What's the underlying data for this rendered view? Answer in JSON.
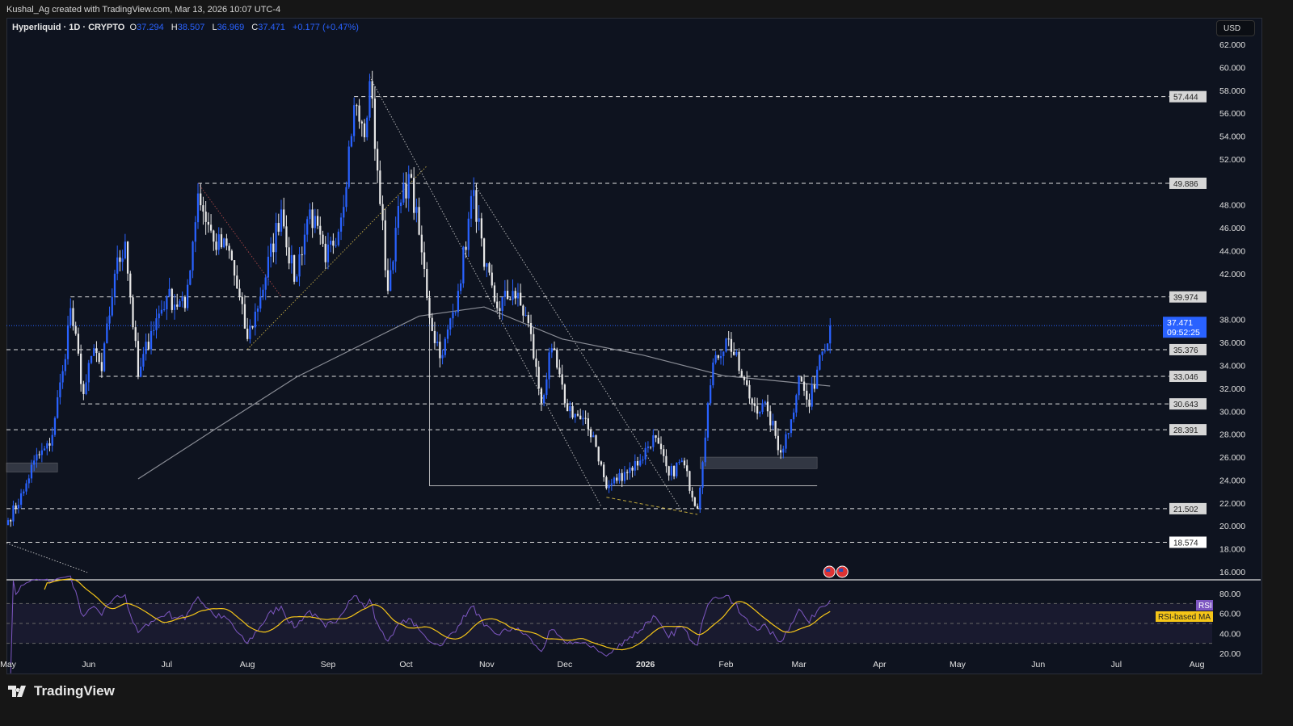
{
  "credit": "Kushal_Ag created with TradingView.com, Mar 13, 2026 10:07 UTC-4",
  "legend": {
    "symbol": "Hyperliquid · 1D · CRYPTO",
    "o_label": "O",
    "o": "37.294",
    "h_label": "H",
    "h": "38.507",
    "l_label": "L",
    "l": "36.969",
    "c_label": "C",
    "c": "37.471",
    "change": "+0.177 (+0.47%)"
  },
  "currency_button": "USD",
  "logo": "TradingView",
  "colors": {
    "up": "#2962ff",
    "down": "#e6e6e6",
    "ma": "#8a8d96",
    "rsi": "#7e57c2",
    "rsi_ma": "#f5c518",
    "last_price": "#2962ff"
  },
  "chart_data": {
    "type": "candlestick",
    "timeframe": "1D",
    "start_date": "2025-05-01",
    "ylim": [
      16,
      62
    ],
    "y_ticks": [
      "62.000",
      "60.000",
      "58.000",
      "56.000",
      "54.000",
      "52.000",
      "48.000",
      "46.000",
      "44.000",
      "42.000",
      "38.000",
      "36.000",
      "34.000",
      "32.000",
      "30.000",
      "28.000",
      "26.000",
      "24.000",
      "22.000",
      "20.000",
      "18.000",
      "16.000"
    ],
    "x_ticks": [
      {
        "label": "May",
        "date": "2025-05-01"
      },
      {
        "label": "Jun",
        "date": "2025-06-01"
      },
      {
        "label": "Jul",
        "date": "2025-07-01"
      },
      {
        "label": "Aug",
        "date": "2025-08-01"
      },
      {
        "label": "Sep",
        "date": "2025-09-01"
      },
      {
        "label": "Oct",
        "date": "2025-10-01"
      },
      {
        "label": "Nov",
        "date": "2025-11-01"
      },
      {
        "label": "Dec",
        "date": "2025-12-01"
      },
      {
        "label": "2026",
        "date": "2026-01-01"
      },
      {
        "label": "Feb",
        "date": "2026-02-01"
      },
      {
        "label": "Mar",
        "date": "2026-03-01"
      },
      {
        "label": "Apr",
        "date": "2026-04-01"
      },
      {
        "label": "May",
        "date": "2026-05-01"
      },
      {
        "label": "Jun",
        "date": "2026-06-01"
      },
      {
        "label": "Jul",
        "date": "2026-07-01"
      },
      {
        "label": "Aug",
        "date": "2026-08-01"
      }
    ],
    "x_end": "2026-08-05",
    "close_path": [
      [
        "2025-05-01",
        20.5
      ],
      [
        "2025-05-07",
        23
      ],
      [
        "2025-05-11",
        25.7
      ],
      [
        "2025-05-17",
        27
      ],
      [
        "2025-05-22",
        33.5
      ],
      [
        "2025-05-25",
        39
      ],
      [
        "2025-05-30",
        31.5
      ],
      [
        "2025-06-03",
        35.5
      ],
      [
        "2025-06-06",
        33.5
      ],
      [
        "2025-06-11",
        42
      ],
      [
        "2025-06-15",
        44.8
      ],
      [
        "2025-06-20",
        33
      ],
      [
        "2025-06-25",
        37
      ],
      [
        "2025-07-01",
        40
      ],
      [
        "2025-07-08",
        39
      ],
      [
        "2025-07-13",
        49
      ],
      [
        "2025-07-19",
        44.8
      ],
      [
        "2025-07-25",
        44
      ],
      [
        "2025-08-01",
        36.3
      ],
      [
        "2025-08-06",
        40
      ],
      [
        "2025-08-14",
        47.6
      ],
      [
        "2025-08-19",
        41.3
      ],
      [
        "2025-08-25",
        47.6
      ],
      [
        "2025-08-31",
        43
      ],
      [
        "2025-09-06",
        46.9
      ],
      [
        "2025-09-11",
        56.7
      ],
      [
        "2025-09-15",
        53.9
      ],
      [
        "2025-09-17",
        58.8
      ],
      [
        "2025-09-20",
        51
      ],
      [
        "2025-09-24",
        40.5
      ],
      [
        "2025-09-27",
        46
      ],
      [
        "2025-10-02",
        50.7
      ],
      [
        "2025-10-06",
        45.4
      ],
      [
        "2025-10-11",
        37
      ],
      [
        "2025-10-15",
        34.9
      ],
      [
        "2025-10-21",
        40.5
      ],
      [
        "2025-10-27",
        49.3
      ],
      [
        "2025-10-31",
        42.6
      ],
      [
        "2025-11-05",
        39
      ],
      [
        "2025-11-11",
        40.5
      ],
      [
        "2025-11-17",
        37.7
      ],
      [
        "2025-11-22",
        30.7
      ],
      [
        "2025-11-26",
        35.5
      ],
      [
        "2025-12-01",
        30.7
      ],
      [
        "2025-12-07",
        29.3
      ],
      [
        "2025-12-12",
        27.9
      ],
      [
        "2025-12-17",
        23.3
      ],
      [
        "2025-12-24",
        24.7
      ],
      [
        "2025-12-30",
        25.7
      ],
      [
        "2026-01-04",
        27.9
      ],
      [
        "2026-01-10",
        24.4
      ],
      [
        "2026-01-15",
        25.7
      ],
      [
        "2026-01-21",
        21.5
      ],
      [
        "2026-01-25",
        30.7
      ],
      [
        "2026-01-28",
        34.9
      ],
      [
        "2026-02-02",
        36.3
      ],
      [
        "2026-02-07",
        33
      ],
      [
        "2026-02-11",
        30.7
      ],
      [
        "2026-02-17",
        30
      ],
      [
        "2026-02-22",
        26.4
      ],
      [
        "2026-02-26",
        29.3
      ],
      [
        "2026-03-01",
        33
      ],
      [
        "2026-03-05",
        30.4
      ],
      [
        "2026-03-09",
        34.9
      ],
      [
        "2026-03-13",
        37.471
      ]
    ],
    "moving_average": [
      [
        "2025-06-20",
        24.1
      ],
      [
        "2025-07-20",
        28.5
      ],
      [
        "2025-08-20",
        33
      ],
      [
        "2025-09-20",
        36.5
      ],
      [
        "2025-10-06",
        38.3
      ],
      [
        "2025-10-31",
        39.1
      ],
      [
        "2025-11-30",
        36.3
      ],
      [
        "2025-12-31",
        34.9
      ],
      [
        "2026-01-31",
        33.1
      ],
      [
        "2026-03-13",
        32.2
      ]
    ],
    "last_price": {
      "value": "37.471",
      "countdown": "09:52:25"
    },
    "levels": [
      {
        "value": 57.444,
        "label": "57.444",
        "from": "2025-09-11"
      },
      {
        "value": 49.886,
        "label": "49.886",
        "from": "2025-07-13"
      },
      {
        "value": 39.974,
        "label": "39.974",
        "from": "2025-05-25"
      },
      {
        "value": 35.376,
        "label": "35.376",
        "from": "2025-04-30"
      },
      {
        "value": 33.046,
        "label": "33.046",
        "from": "2025-06-05"
      },
      {
        "value": 30.643,
        "label": "30.643",
        "from": "2025-05-29"
      },
      {
        "value": 28.391,
        "label": "28.391",
        "from": "2025-04-30"
      },
      {
        "value": 21.502,
        "label": "21.502",
        "from": "2025-04-30"
      },
      {
        "value": 18.574,
        "label": "18.574",
        "from": "2025-04-30"
      }
    ],
    "zones": [
      {
        "from": "2025-04-30",
        "to": "2025-05-20",
        "top": 25.5,
        "bottom": 24.7
      },
      {
        "from": "2026-01-22",
        "to": "2026-03-08",
        "top": 26.0,
        "bottom": 25.0
      }
    ],
    "drawings": [
      {
        "style": "dotted",
        "color": "#cfcfcf",
        "points": [
          [
            "2025-09-17",
            59.2
          ],
          [
            "2025-12-15",
            21.7
          ]
        ]
      },
      {
        "style": "dotted",
        "color": "#cfcfcf",
        "points": [
          [
            "2025-10-27",
            49.9
          ],
          [
            "2026-01-15",
            21.3
          ]
        ]
      },
      {
        "style": "dotted",
        "color": "#d4b94a",
        "points": [
          [
            "2025-08-01",
            35.4
          ],
          [
            "2025-10-09",
            51.4
          ]
        ]
      },
      {
        "style": "dotted",
        "color": "#b04a4a",
        "points": [
          [
            "2025-07-13",
            49.9
          ],
          [
            "2025-08-14",
            40
          ]
        ]
      },
      {
        "style": "dotted",
        "color": "#cfcfcf",
        "points": [
          [
            "2025-04-30",
            18.5
          ],
          [
            "2025-06-01",
            15.9
          ]
        ]
      },
      {
        "style": "dashed",
        "color": "#e0c341",
        "points": [
          [
            "2025-12-17",
            22.5
          ],
          [
            "2026-01-21",
            21
          ]
        ]
      },
      {
        "style": "solid",
        "color": "#cfcfcf",
        "points": [
          [
            "2025-10-10",
            40
          ],
          [
            "2025-10-10",
            23.5
          ],
          [
            "2026-03-08",
            23.5
          ]
        ]
      }
    ],
    "rsi": {
      "period": 14,
      "ma_period": 14,
      "ticks": [
        "80.00",
        "60.00",
        "40.00",
        "20.00"
      ],
      "ylim": [
        13,
        87
      ],
      "bands": [
        70,
        30
      ],
      "label": "RSI",
      "ma_label": "RSI-based MA"
    },
    "events": [
      "us-flag",
      "us-flag"
    ]
  }
}
